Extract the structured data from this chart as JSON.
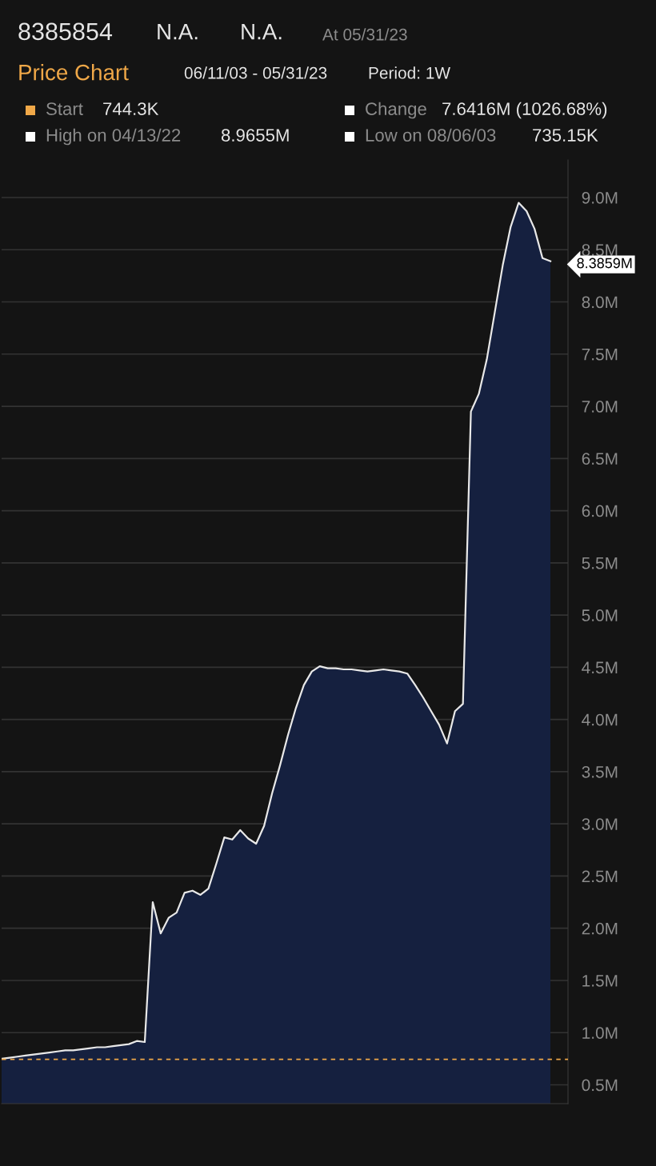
{
  "chart_data": {
    "type": "area",
    "title": "Price Chart",
    "categories": [
      null,
      null,
      null,
      null,
      null,
      null,
      null,
      null,
      null,
      null,
      null,
      null,
      null,
      null,
      null,
      null,
      null,
      null,
      null,
      null,
      null,
      null,
      null,
      null,
      null,
      null,
      null,
      null,
      null,
      null,
      null,
      null,
      null,
      null,
      null,
      null,
      null,
      null,
      null,
      null,
      null,
      null,
      null,
      null,
      null,
      null,
      null,
      null,
      null,
      null,
      null,
      null,
      null,
      null,
      null,
      null,
      null,
      null,
      null,
      null,
      null,
      null,
      null,
      null,
      null,
      null,
      null,
      null,
      null,
      null
    ],
    "series": [
      {
        "color": "#e8e8e8",
        "values": [
          0.75,
          0.76,
          0.77,
          0.78,
          0.79,
          0.8,
          0.81,
          0.82,
          0.83,
          0.83,
          0.84,
          0.85,
          0.86,
          0.86,
          0.87,
          0.88,
          0.89,
          0.92,
          0.91,
          2.25,
          1.95,
          2.1,
          2.15,
          2.34,
          2.36,
          2.32,
          2.38,
          2.62,
          2.87,
          2.85,
          2.94,
          2.86,
          2.81,
          2.98,
          3.29,
          3.56,
          3.85,
          4.11,
          4.33,
          4.46,
          4.51,
          4.49,
          4.49,
          4.48,
          4.48,
          4.47,
          4.46,
          4.47,
          4.48,
          4.47,
          4.46,
          4.44,
          4.33,
          4.21,
          4.08,
          3.95,
          3.77,
          4.08,
          4.15,
          6.95,
          7.12,
          7.45,
          7.9,
          8.35,
          8.72,
          8.95,
          8.87,
          8.7,
          8.42,
          8.39
        ]
      }
    ],
    "ylim": [
      0.32,
      9.36
    ],
    "yticks": [
      {
        "value": 0.5,
        "label": "0.5M"
      },
      {
        "value": 1.0,
        "label": "1.0M"
      },
      {
        "value": 1.5,
        "label": "1.5M"
      },
      {
        "value": 2.0,
        "label": "2.0M"
      },
      {
        "value": 2.5,
        "label": "2.5M"
      },
      {
        "value": 3.0,
        "label": "3.0M"
      },
      {
        "value": 3.5,
        "label": "3.5M"
      },
      {
        "value": 4.0,
        "label": "4.0M"
      },
      {
        "value": 4.5,
        "label": "4.5M"
      },
      {
        "value": 5.0,
        "label": "5.0M"
      },
      {
        "value": 5.5,
        "label": "5.5M"
      },
      {
        "value": 6.0,
        "label": "6.0M"
      },
      {
        "value": 6.5,
        "label": "6.5M"
      },
      {
        "value": 7.0,
        "label": "7.0M"
      },
      {
        "value": 7.5,
        "label": "7.5M"
      },
      {
        "value": 8.0,
        "label": "8.0M"
      },
      {
        "value": 8.5,
        "label": "8.5M"
      },
      {
        "value": 9.0,
        "label": "9.0M"
      }
    ],
    "grid": "y",
    "tick_labels": "y",
    "ref_lines": [
      {
        "axis": "y",
        "value": 0.7443,
        "color": "#f0a848",
        "line_style": "dashed"
      }
    ],
    "annotations": [
      "8385854",
      "N.A.",
      "N.A.",
      "At 05/31/23",
      "06/11/03 - 05/31/23",
      "Period: 1W",
      "Start",
      "744.3K",
      "Change",
      "7.6416M (1026.68%)",
      "High on 04/13/22",
      "8.9655M",
      "Low on 08/06/03",
      "735.15K",
      "8.3859M"
    ]
  }
}
